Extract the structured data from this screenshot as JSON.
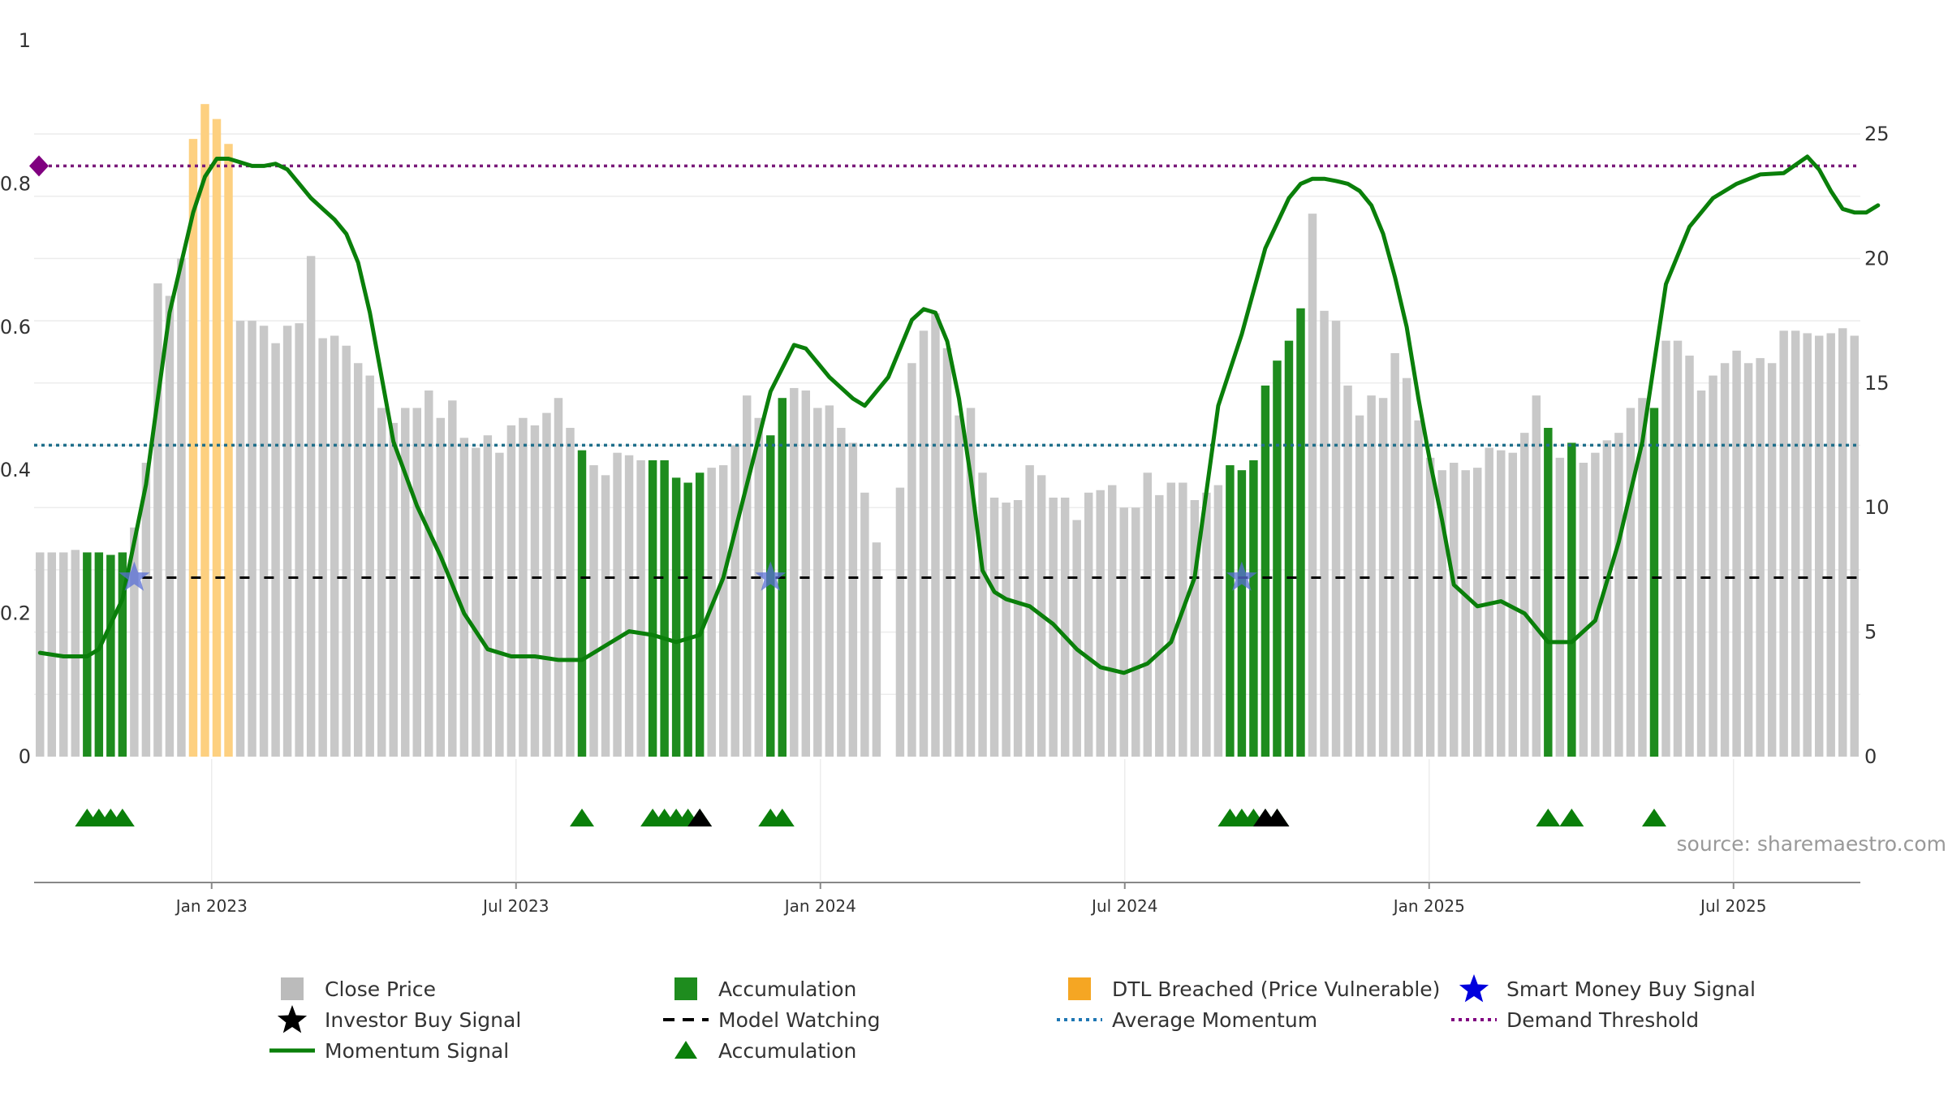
{
  "chart_data": {
    "type": "bar",
    "source_text": "source: sharemaestro.com",
    "x_tick_labels": [
      "Jan 2023",
      "Jul 2023",
      "Jan 2024",
      "Jul 2024",
      "Jan 2025",
      "Jul 2025"
    ],
    "x_tick_months": [
      4,
      10,
      16,
      22,
      28,
      34
    ],
    "x_range_months": [
      0.5,
      36.5
    ],
    "y_left": {
      "range": [
        0,
        1
      ],
      "ticks": [
        0,
        0.2,
        0.4,
        0.6,
        0.8,
        1
      ],
      "tick_labels": [
        "0",
        "0.2",
        "0.4",
        "0.6",
        "0.8",
        "1"
      ]
    },
    "y_right": {
      "range": [
        0,
        25
      ],
      "ticks": [
        0,
        5,
        10,
        15,
        20,
        25
      ],
      "tick_labels": [
        "0",
        "5",
        "10",
        "15",
        "20",
        "25"
      ]
    },
    "average_momentum": 0.435,
    "demand_threshold": 0.825,
    "model_watching_level": 0.25,
    "close_price": {
      "name": "Close Price",
      "values": [
        8.2,
        8.2,
        8.2,
        8.3,
        8.2,
        8.2,
        8.1,
        8.2,
        9.2,
        11.8,
        19.0,
        18.5,
        20.0,
        24.8,
        26.2,
        25.6,
        24.6,
        17.5,
        17.5,
        17.3,
        16.6,
        17.3,
        17.4,
        20.1,
        16.8,
        16.9,
        16.5,
        15.8,
        15.3,
        14.0,
        13.4,
        14.0,
        14.0,
        14.7,
        13.6,
        14.3,
        12.8,
        12.4,
        12.9,
        12.2,
        13.3,
        13.6,
        13.3,
        13.8,
        14.4,
        13.2,
        12.3,
        11.7,
        11.3,
        12.2,
        12.1,
        11.9,
        11.9,
        11.9,
        11.2,
        11.0,
        11.4,
        11.6,
        11.7,
        12.5,
        14.5,
        13.6,
        12.9,
        14.4,
        14.8,
        14.7,
        14.0,
        14.1,
        13.2,
        12.6,
        10.6,
        8.6,
        0,
        10.8,
        15.8,
        17.1,
        17.8,
        16.4,
        13.7,
        14.0,
        11.4,
        10.4,
        10.2,
        10.3,
        11.7,
        11.3,
        10.4,
        10.4,
        9.5,
        10.6,
        10.7,
        10.9,
        10.0,
        10.0,
        11.4,
        10.5,
        11.0,
        11.0,
        10.3,
        10.6,
        10.9,
        11.7,
        11.5,
        11.9,
        14.9,
        15.9,
        16.7,
        18.0,
        21.8,
        17.9,
        17.5,
        14.9,
        13.7,
        14.5,
        14.4,
        16.2,
        15.2,
        13.5,
        12.0,
        11.5,
        11.8,
        11.5,
        11.6,
        12.4,
        12.3,
        12.2,
        13.0,
        14.5,
        13.2,
        12.0,
        12.6,
        11.8,
        12.2,
        12.7,
        13.0,
        14.0,
        14.4,
        14.0,
        16.7,
        16.7,
        16.1,
        14.7,
        15.3,
        15.8,
        16.3,
        15.8,
        16.0,
        15.8,
        17.1,
        17.1,
        17.0,
        16.9,
        17.0,
        17.2,
        16.9
      ]
    },
    "accumulation_indices": [
      4,
      5,
      6,
      7,
      46,
      52,
      53,
      54,
      55,
      56,
      62,
      63,
      101,
      102,
      103,
      104,
      105,
      106,
      107,
      128,
      130,
      137
    ],
    "dtl_breached_indices": [
      13,
      14,
      15,
      16
    ],
    "momentum_signal": {
      "name": "Momentum Signal",
      "x": [
        0,
        2,
        4,
        5,
        7,
        9,
        11,
        13,
        14,
        15,
        16,
        17,
        18,
        19,
        20,
        21,
        22,
        23,
        24,
        25,
        26,
        27,
        28,
        29,
        30,
        32,
        34,
        36,
        38,
        40,
        42,
        44,
        46,
        48,
        50,
        52,
        54,
        56,
        58,
        60,
        62,
        64,
        65,
        66,
        67,
        68,
        69,
        70,
        72,
        74,
        75,
        76,
        77,
        78,
        79,
        80,
        81,
        82,
        84,
        86,
        88,
        90,
        92,
        94,
        96,
        98,
        100,
        102,
        104,
        106,
        107,
        108,
        109,
        110,
        111,
        112,
        113,
        114,
        115,
        116,
        117,
        118,
        119,
        120,
        122,
        124,
        126,
        128,
        130,
        132,
        134,
        136,
        137,
        138,
        140,
        142,
        144,
        146,
        148,
        150,
        151,
        152,
        153,
        154,
        155,
        156
      ],
      "values": [
        0.145,
        0.14,
        0.14,
        0.15,
        0.22,
        0.38,
        0.62,
        0.76,
        0.81,
        0.835,
        0.835,
        0.83,
        0.825,
        0.825,
        0.828,
        0.82,
        0.8,
        0.78,
        0.765,
        0.75,
        0.73,
        0.69,
        0.62,
        0.53,
        0.44,
        0.35,
        0.28,
        0.2,
        0.15,
        0.14,
        0.14,
        0.135,
        0.135,
        0.155,
        0.175,
        0.17,
        0.16,
        0.17,
        0.25,
        0.38,
        0.51,
        0.575,
        0.57,
        0.55,
        0.53,
        0.515,
        0.5,
        0.49,
        0.53,
        0.61,
        0.625,
        0.62,
        0.58,
        0.5,
        0.39,
        0.26,
        0.23,
        0.22,
        0.21,
        0.185,
        0.15,
        0.125,
        0.117,
        0.13,
        0.16,
        0.25,
        0.49,
        0.59,
        0.71,
        0.78,
        0.8,
        0.807,
        0.807,
        0.804,
        0.8,
        0.79,
        0.77,
        0.73,
        0.67,
        0.6,
        0.5,
        0.41,
        0.33,
        0.24,
        0.21,
        0.217,
        0.2,
        0.16,
        0.16,
        0.19,
        0.3,
        0.44,
        0.55,
        0.66,
        0.74,
        0.78,
        0.8,
        0.813,
        0.815,
        0.838,
        0.82,
        0.79,
        0.765,
        0.76,
        0.76,
        0.77
      ]
    },
    "smart_money_buy_signal_indices": [
      8,
      62,
      102
    ],
    "marker_accumulation_indices": [
      4,
      5,
      6,
      7,
      46,
      52,
      53,
      54,
      55,
      56,
      62,
      63,
      101,
      102,
      103,
      104,
      105,
      128,
      130,
      137
    ],
    "marker_investor_buy_indices": [
      56,
      104,
      105
    ],
    "legend": [
      {
        "label": "Close Price",
        "symbol": "square",
        "color": "#bbbbbb"
      },
      {
        "label": "Accumulation",
        "symbol": "square",
        "color": "#1e8c1e"
      },
      {
        "label": "DTL Breached (Price Vulnerable)",
        "symbol": "square",
        "color": "#f5a623"
      },
      {
        "label": "Smart Money Buy Signal",
        "symbol": "star",
        "color": "#0000dd"
      },
      {
        "label": "Investor Buy Signal",
        "symbol": "star",
        "color": "#000000"
      },
      {
        "label": "Model Watching",
        "symbol": "dash",
        "color": "#000000"
      },
      {
        "label": "Average Momentum",
        "symbol": "dot",
        "color": "#1f77b4"
      },
      {
        "label": "Demand Threshold",
        "symbol": "dot",
        "color": "#800080"
      },
      {
        "label": "Momentum Signal",
        "symbol": "line",
        "color": "#0a7f0a"
      },
      {
        "label": "Accumulation",
        "symbol": "triangle",
        "color": "#0a7f0a"
      }
    ],
    "colors": {
      "close": "#c8c8c8",
      "accumulation": "#1e8c1e",
      "dtl": "#fdd080",
      "momentum": "#0a7f0a",
      "average": "#1f6f8b",
      "threshold": "#7a1a7a",
      "smart_money": "#5a6fd6",
      "marker_acc": "#0a7f0a",
      "marker_inv": "#000000"
    }
  }
}
